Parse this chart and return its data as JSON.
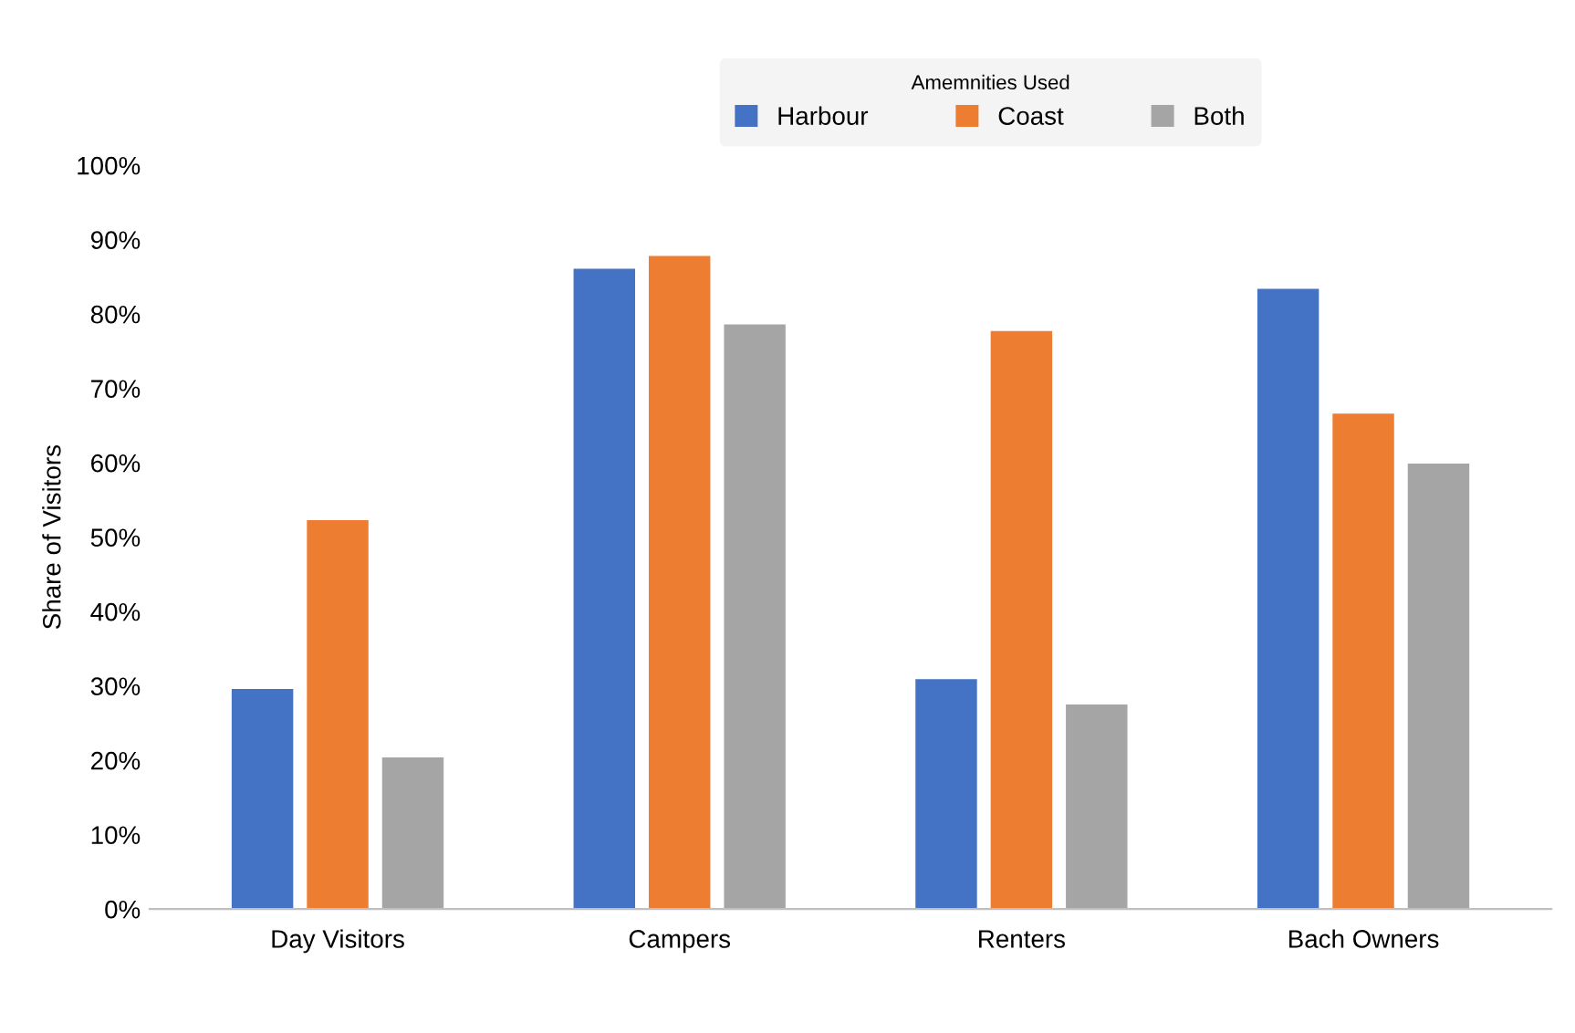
{
  "chart_data": {
    "type": "bar",
    "ylabel": "Share of Visitors",
    "legend_title": "Amemnities Used",
    "legend": "top",
    "categories": [
      "Day Visitors",
      "Campers",
      "Renters",
      "Bach Owners"
    ],
    "series": [
      {
        "name": "Harbour",
        "color": "#4472c4",
        "values": [
          29.6,
          86.1,
          30.9,
          83.4
        ]
      },
      {
        "name": "Coast",
        "color": "#ed7d31",
        "values": [
          52.3,
          87.8,
          77.7,
          66.6
        ]
      },
      {
        "name": "Both",
        "color": "#a5a5a5",
        "values": [
          20.4,
          78.6,
          27.5,
          59.9
        ]
      }
    ],
    "ylim": [
      0,
      100
    ],
    "yticks": [
      {
        "value": 0,
        "label": "0%"
      },
      {
        "value": 10,
        "label": "10%"
      },
      {
        "value": 20,
        "label": "20%"
      },
      {
        "value": 30,
        "label": "30%"
      },
      {
        "value": 40,
        "label": "40%"
      },
      {
        "value": 50,
        "label": "50%"
      },
      {
        "value": 60,
        "label": "60%"
      },
      {
        "value": 70,
        "label": "70%"
      },
      {
        "value": 80,
        "label": "80%"
      },
      {
        "value": 90,
        "label": "90%"
      },
      {
        "value": 100,
        "label": "100%"
      }
    ],
    "grid": false
  }
}
